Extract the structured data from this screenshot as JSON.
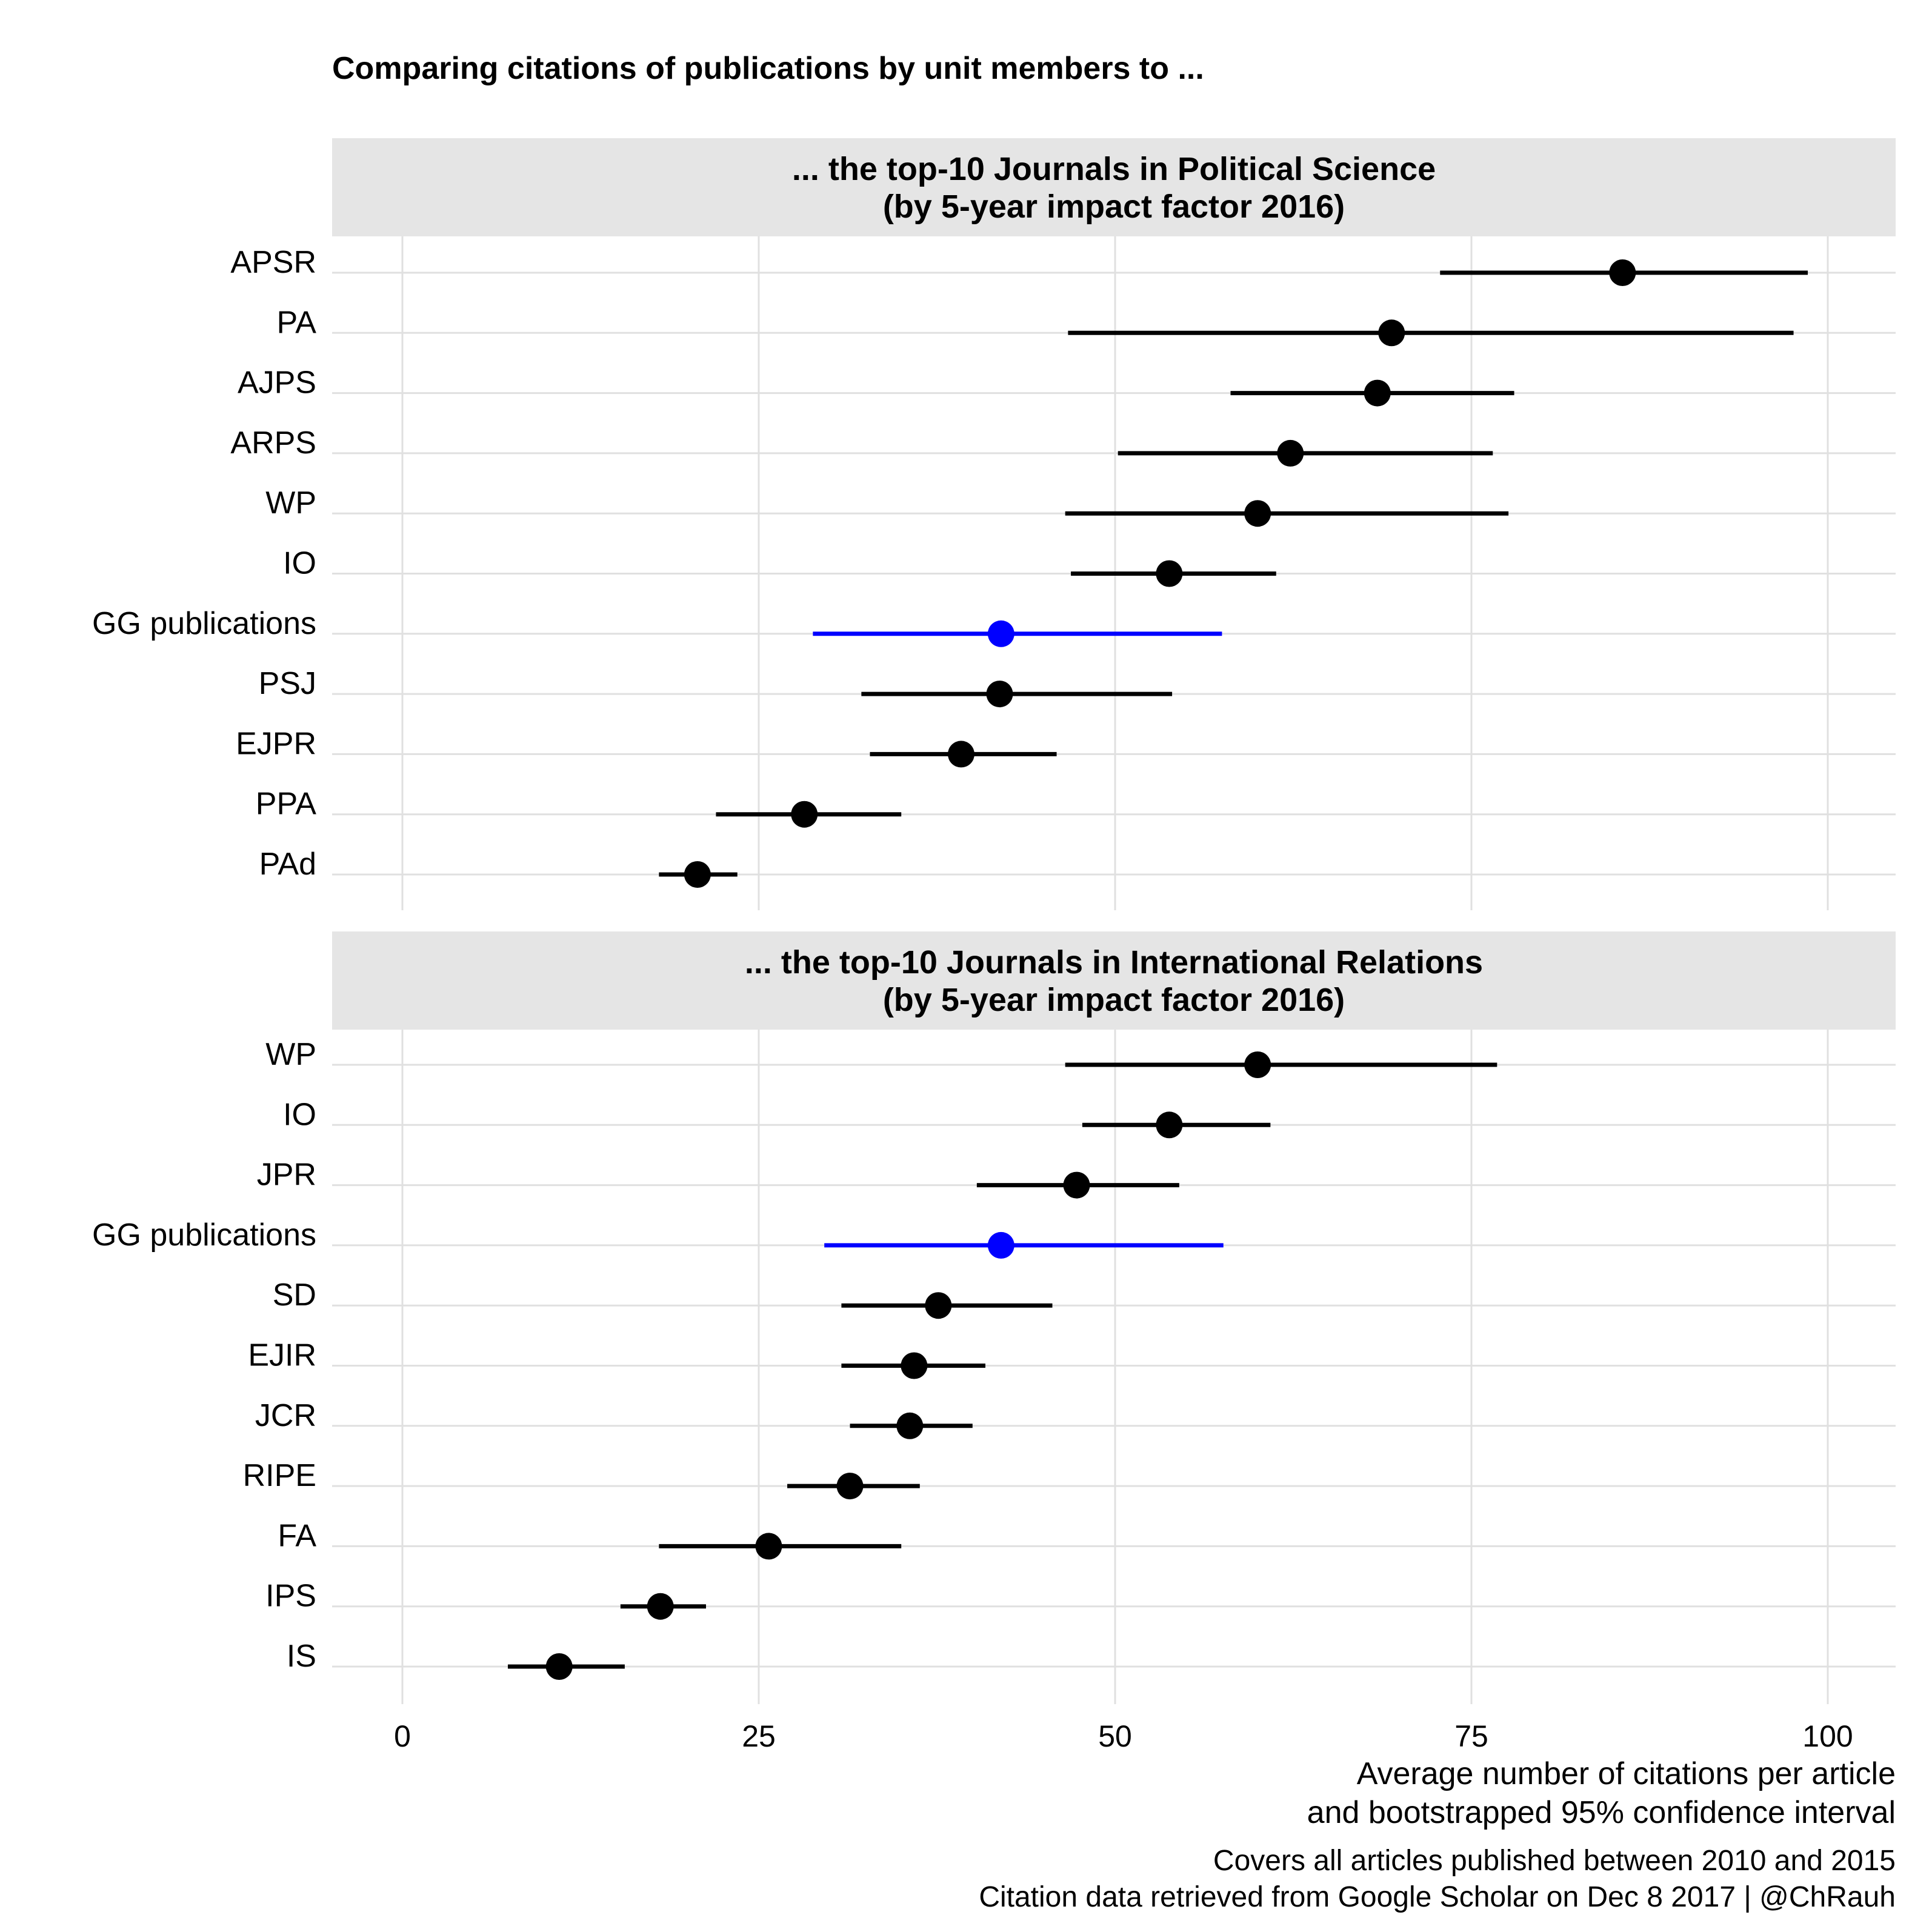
{
  "title": "Comparing citations of publications by unit members to ...",
  "xlabel": [
    "Average number of citations per article",
    "and bootstrapped 95% confidence interval"
  ],
  "caption": [
    "Covers all articles published between 2010 and 2015",
    "Citation data retrieved from Google Scholar on Dec 8 2017 | @ChRauh"
  ],
  "colors": {
    "default": "#000000",
    "highlight": "#0000ff",
    "strip": "#e5e5e5",
    "grid": "#e0e0e0"
  },
  "chart_data": {
    "type": "dot-errorbar",
    "xlim": [
      -5,
      105
    ],
    "xticks": [
      0,
      25,
      50,
      75,
      100
    ],
    "highlight_label": "GG publications",
    "panels": [
      {
        "strip": [
          "... the top-10 Journals in Political Science",
          "(by 5-year impact factor 2016)"
        ],
        "points": [
          {
            "label": "APSR",
            "value": 85.6,
            "low": 72.8,
            "high": 98.6
          },
          {
            "label": "PA",
            "value": 69.4,
            "low": 46.7,
            "high": 97.6
          },
          {
            "label": "AJPS",
            "value": 68.4,
            "low": 58.1,
            "high": 78.0
          },
          {
            "label": "ARPS",
            "value": 62.3,
            "low": 50.2,
            "high": 76.5
          },
          {
            "label": "WP",
            "value": 60.0,
            "low": 46.5,
            "high": 77.6
          },
          {
            "label": "IO",
            "value": 53.8,
            "low": 46.9,
            "high": 61.3
          },
          {
            "label": "GG publications",
            "value": 42.0,
            "low": 28.8,
            "high": 57.5
          },
          {
            "label": "PSJ",
            "value": 41.9,
            "low": 32.2,
            "high": 54.0
          },
          {
            "label": "EJPR",
            "value": 39.2,
            "low": 32.8,
            "high": 45.9
          },
          {
            "label": "PPA",
            "value": 28.2,
            "low": 22.0,
            "high": 35.0
          },
          {
            "label": "PAd",
            "value": 20.7,
            "low": 18.0,
            "high": 23.5
          }
        ]
      },
      {
        "strip": [
          "... the top-10 Journals in International Relations",
          "(by 5-year impact factor 2016)"
        ],
        "points": [
          {
            "label": "WP",
            "value": 60.0,
            "low": 46.5,
            "high": 76.8
          },
          {
            "label": "IO",
            "value": 53.8,
            "low": 47.7,
            "high": 60.9
          },
          {
            "label": "JPR",
            "value": 47.3,
            "low": 40.3,
            "high": 54.5
          },
          {
            "label": "GG publications",
            "value": 42.0,
            "low": 29.6,
            "high": 57.6
          },
          {
            "label": "SD",
            "value": 37.6,
            "low": 30.8,
            "high": 45.6
          },
          {
            "label": "EJIR",
            "value": 35.9,
            "low": 30.8,
            "high": 40.9
          },
          {
            "label": "JCR",
            "value": 35.6,
            "low": 31.4,
            "high": 40.0
          },
          {
            "label": "RIPE",
            "value": 31.4,
            "low": 27.0,
            "high": 36.3
          },
          {
            "label": "FA",
            "value": 25.7,
            "low": 18.0,
            "high": 35.0
          },
          {
            "label": "IPS",
            "value": 18.1,
            "low": 15.3,
            "high": 21.3
          },
          {
            "label": "IS",
            "value": 11.0,
            "low": 7.4,
            "high": 15.6
          }
        ]
      }
    ]
  }
}
